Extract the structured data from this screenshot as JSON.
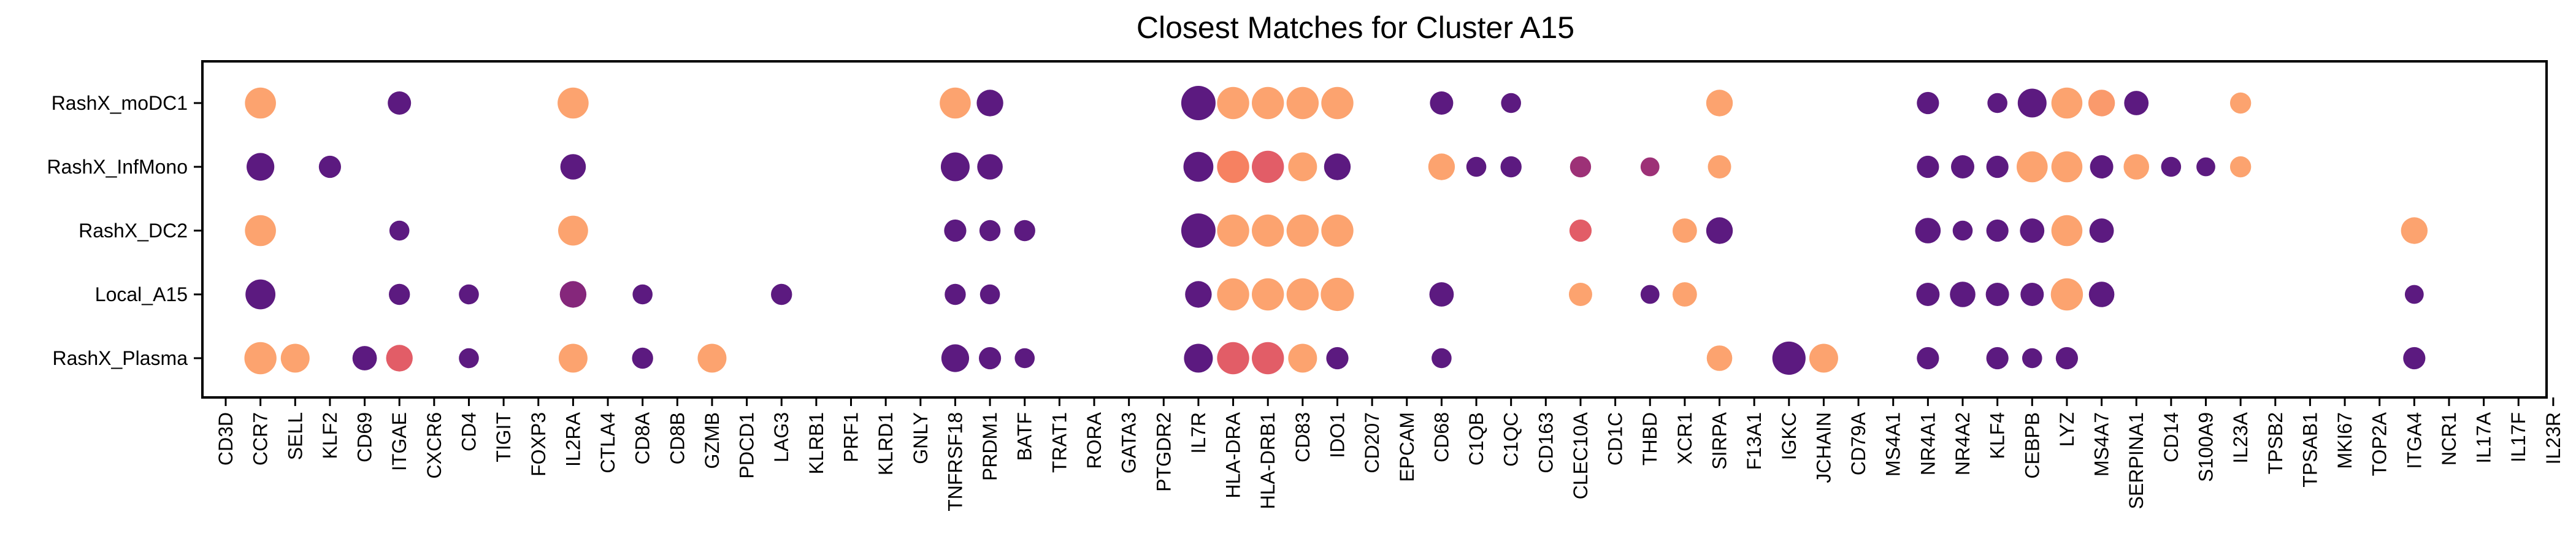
{
  "chart_data": {
    "type": "scatter",
    "subtype": "dot-plot",
    "title": "Closest Matches for Cluster A15",
    "xlabel": "",
    "ylabel": "",
    "grid": false,
    "legend": "none",
    "genes": [
      "CD3D",
      "CCR7",
      "SELL",
      "KLF2",
      "CD69",
      "ITGAE",
      "CXCR6",
      "CD4",
      "TIGIT",
      "FOXP3",
      "IL2RA",
      "CTLA4",
      "CD8A",
      "CD8B",
      "GZMB",
      "PDCD1",
      "LAG3",
      "KLRB1",
      "PRF1",
      "KLRD1",
      "GNLY",
      "TNFRSF18",
      "PRDM1",
      "BATF",
      "TRAT1",
      "RORA",
      "GATA3",
      "PTGDR2",
      "IL7R",
      "HLA-DRA",
      "HLA-DRB1",
      "CD83",
      "IDO1",
      "CD207",
      "EPCAM",
      "CD68",
      "C1QB",
      "C1QC",
      "CD163",
      "CLEC10A",
      "CD1C",
      "THBD",
      "XCR1",
      "SIRPA",
      "F13A1",
      "IGKC",
      "JCHAIN",
      "CD79A",
      "MS4A1",
      "NR4A1",
      "NR4A2",
      "KLF4",
      "CEBPB",
      "LYZ",
      "MS4A7",
      "SERPINA1",
      "CD14",
      "S100A9",
      "IL23A",
      "TPSB2",
      "TPSAB1",
      "MKI67",
      "TOP2A",
      "ITGA4",
      "NCR1",
      "IL17A",
      "IL17F",
      "IL23R"
    ],
    "rows": [
      "RashX_moDC1",
      "RashX_InfMono",
      "RashX_DC2",
      "Local_A15",
      "RashX_Plasma"
    ],
    "size_unit": "relative dot size (0-1)",
    "color_unit": "relative expression (0 = dark purple, 1 = light orange)",
    "palette": [
      "#5c1a80",
      "#8f2a7a",
      "#d64b6d",
      "#f4785e",
      "#fca36f"
    ],
    "points": [
      {
        "row": "RashX_moDC1",
        "gene": "CCR7",
        "size": 0.85,
        "color": 1.0
      },
      {
        "row": "RashX_moDC1",
        "gene": "ITGAE",
        "size": 0.5,
        "color": 0.0
      },
      {
        "row": "RashX_moDC1",
        "gene": "IL2RA",
        "size": 0.85,
        "color": 1.0
      },
      {
        "row": "RashX_moDC1",
        "gene": "TNFRSF18",
        "size": 0.85,
        "color": 1.0
      },
      {
        "row": "RashX_moDC1",
        "gene": "PRDM1",
        "size": 0.65,
        "color": 0.0
      },
      {
        "row": "RashX_moDC1",
        "gene": "IL7R",
        "size": 1.0,
        "color": 0.0
      },
      {
        "row": "RashX_moDC1",
        "gene": "HLA-DRA",
        "size": 0.9,
        "color": 1.0
      },
      {
        "row": "RashX_moDC1",
        "gene": "HLA-DRB1",
        "size": 0.9,
        "color": 1.0
      },
      {
        "row": "RashX_moDC1",
        "gene": "CD83",
        "size": 0.9,
        "color": 1.0
      },
      {
        "row": "RashX_moDC1",
        "gene": "IDO1",
        "size": 0.9,
        "color": 1.0
      },
      {
        "row": "RashX_moDC1",
        "gene": "CD68",
        "size": 0.5,
        "color": 0.0
      },
      {
        "row": "RashX_moDC1",
        "gene": "C1QC",
        "size": 0.35,
        "color": 0.0
      },
      {
        "row": "RashX_moDC1",
        "gene": "SIRPA",
        "size": 0.65,
        "color": 1.0
      },
      {
        "row": "RashX_moDC1",
        "gene": "NR4A1",
        "size": 0.45,
        "color": 0.0
      },
      {
        "row": "RashX_moDC1",
        "gene": "KLF4",
        "size": 0.35,
        "color": 0.0
      },
      {
        "row": "RashX_moDC1",
        "gene": "CEBPB",
        "size": 0.75,
        "color": 0.0
      },
      {
        "row": "RashX_moDC1",
        "gene": "LYZ",
        "size": 0.85,
        "color": 1.0
      },
      {
        "row": "RashX_moDC1",
        "gene": "MS4A7",
        "size": 0.65,
        "color": 0.95
      },
      {
        "row": "RashX_moDC1",
        "gene": "SERPINA1",
        "size": 0.55,
        "color": 0.0
      },
      {
        "row": "RashX_moDC1",
        "gene": "IL23A",
        "size": 0.4,
        "color": 1.0
      },
      {
        "row": "RashX_InfMono",
        "gene": "CCR7",
        "size": 0.7,
        "color": 0.0
      },
      {
        "row": "RashX_InfMono",
        "gene": "KLF2",
        "size": 0.45,
        "color": 0.0
      },
      {
        "row": "RashX_InfMono",
        "gene": "IL2RA",
        "size": 0.6,
        "color": 0.0
      },
      {
        "row": "RashX_InfMono",
        "gene": "TNFRSF18",
        "size": 0.75,
        "color": 0.0
      },
      {
        "row": "RashX_InfMono",
        "gene": "PRDM1",
        "size": 0.6,
        "color": 0.0
      },
      {
        "row": "RashX_InfMono",
        "gene": "IL7R",
        "size": 0.8,
        "color": 0.0
      },
      {
        "row": "RashX_InfMono",
        "gene": "HLA-DRA",
        "size": 0.9,
        "color": 0.8
      },
      {
        "row": "RashX_InfMono",
        "gene": "HLA-DRB1",
        "size": 0.9,
        "color": 0.6
      },
      {
        "row": "RashX_InfMono",
        "gene": "CD83",
        "size": 0.75,
        "color": 1.0
      },
      {
        "row": "RashX_InfMono",
        "gene": "IDO1",
        "size": 0.65,
        "color": 0.0
      },
      {
        "row": "RashX_InfMono",
        "gene": "CD68",
        "size": 0.65,
        "color": 1.0
      },
      {
        "row": "RashX_InfMono",
        "gene": "C1QB",
        "size": 0.35,
        "color": 0.0
      },
      {
        "row": "RashX_InfMono",
        "gene": "C1QC",
        "size": 0.4,
        "color": 0.0
      },
      {
        "row": "RashX_InfMono",
        "gene": "CLEC10A",
        "size": 0.4,
        "color": 0.3
      },
      {
        "row": "RashX_InfMono",
        "gene": "THBD",
        "size": 0.3,
        "color": 0.3
      },
      {
        "row": "RashX_InfMono",
        "gene": "SIRPA",
        "size": 0.5,
        "color": 1.0
      },
      {
        "row": "RashX_InfMono",
        "gene": "NR4A1",
        "size": 0.45,
        "color": 0.0
      },
      {
        "row": "RashX_InfMono",
        "gene": "NR4A2",
        "size": 0.5,
        "color": 0.0
      },
      {
        "row": "RashX_InfMono",
        "gene": "KLF4",
        "size": 0.45,
        "color": 0.0
      },
      {
        "row": "RashX_InfMono",
        "gene": "CEBPB",
        "size": 0.85,
        "color": 1.0
      },
      {
        "row": "RashX_InfMono",
        "gene": "LYZ",
        "size": 0.85,
        "color": 1.0
      },
      {
        "row": "RashX_InfMono",
        "gene": "MS4A7",
        "size": 0.5,
        "color": 0.0
      },
      {
        "row": "RashX_InfMono",
        "gene": "SERPINA1",
        "size": 0.6,
        "color": 1.0
      },
      {
        "row": "RashX_InfMono",
        "gene": "CD14",
        "size": 0.35,
        "color": 0.0
      },
      {
        "row": "RashX_InfMono",
        "gene": "S100A9",
        "size": 0.3,
        "color": 0.0
      },
      {
        "row": "RashX_InfMono",
        "gene": "IL23A",
        "size": 0.4,
        "color": 1.0
      },
      {
        "row": "RashX_DC2",
        "gene": "CCR7",
        "size": 0.85,
        "color": 1.0
      },
      {
        "row": "RashX_DC2",
        "gene": "ITGAE",
        "size": 0.35,
        "color": 0.0
      },
      {
        "row": "RashX_DC2",
        "gene": "IL2RA",
        "size": 0.8,
        "color": 1.0
      },
      {
        "row": "RashX_DC2",
        "gene": "TNFRSF18",
        "size": 0.45,
        "color": 0.0
      },
      {
        "row": "RashX_DC2",
        "gene": "PRDM1",
        "size": 0.4,
        "color": 0.0
      },
      {
        "row": "RashX_DC2",
        "gene": "BATF",
        "size": 0.4,
        "color": 0.0
      },
      {
        "row": "RashX_DC2",
        "gene": "IL7R",
        "size": 1.0,
        "color": 0.0
      },
      {
        "row": "RashX_DC2",
        "gene": "HLA-DRA",
        "size": 0.9,
        "color": 1.0
      },
      {
        "row": "RashX_DC2",
        "gene": "HLA-DRB1",
        "size": 0.9,
        "color": 1.0
      },
      {
        "row": "RashX_DC2",
        "gene": "CD83",
        "size": 0.9,
        "color": 1.0
      },
      {
        "row": "RashX_DC2",
        "gene": "IDO1",
        "size": 0.9,
        "color": 1.0
      },
      {
        "row": "RashX_DC2",
        "gene": "CLEC10A",
        "size": 0.45,
        "color": 0.6
      },
      {
        "row": "RashX_DC2",
        "gene": "XCR1",
        "size": 0.55,
        "color": 1.0
      },
      {
        "row": "RashX_DC2",
        "gene": "SIRPA",
        "size": 0.65,
        "color": 0.0
      },
      {
        "row": "RashX_DC2",
        "gene": "NR4A1",
        "size": 0.6,
        "color": 0.0
      },
      {
        "row": "RashX_DC2",
        "gene": "NR4A2",
        "size": 0.35,
        "color": 0.0
      },
      {
        "row": "RashX_DC2",
        "gene": "KLF4",
        "size": 0.45,
        "color": 0.0
      },
      {
        "row": "RashX_DC2",
        "gene": "CEBPB",
        "size": 0.55,
        "color": 0.0
      },
      {
        "row": "RashX_DC2",
        "gene": "LYZ",
        "size": 0.85,
        "color": 1.0
      },
      {
        "row": "RashX_DC2",
        "gene": "MS4A7",
        "size": 0.55,
        "color": 0.0
      },
      {
        "row": "RashX_DC2",
        "gene": "ITGA4",
        "size": 0.65,
        "color": 1.0
      },
      {
        "row": "Local_A15",
        "gene": "CCR7",
        "size": 0.8,
        "color": 0.0
      },
      {
        "row": "Local_A15",
        "gene": "ITGAE",
        "size": 0.4,
        "color": 0.0
      },
      {
        "row": "Local_A15",
        "gene": "CD4",
        "size": 0.35,
        "color": 0.0
      },
      {
        "row": "Local_A15",
        "gene": "IL2RA",
        "size": 0.65,
        "color": 0.2
      },
      {
        "row": "Local_A15",
        "gene": "CD8A",
        "size": 0.35,
        "color": 0.0
      },
      {
        "row": "Local_A15",
        "gene": "LAG3",
        "size": 0.4,
        "color": 0.0
      },
      {
        "row": "Local_A15",
        "gene": "TNFRSF18",
        "size": 0.4,
        "color": 0.0
      },
      {
        "row": "Local_A15",
        "gene": "PRDM1",
        "size": 0.35,
        "color": 0.0
      },
      {
        "row": "Local_A15",
        "gene": "IL7R",
        "size": 0.65,
        "color": 0.0
      },
      {
        "row": "Local_A15",
        "gene": "HLA-DRA",
        "size": 0.9,
        "color": 1.0
      },
      {
        "row": "Local_A15",
        "gene": "HLA-DRB1",
        "size": 0.9,
        "color": 1.0
      },
      {
        "row": "Local_A15",
        "gene": "CD83",
        "size": 0.9,
        "color": 1.0
      },
      {
        "row": "Local_A15",
        "gene": "IDO1",
        "size": 0.95,
        "color": 1.0
      },
      {
        "row": "Local_A15",
        "gene": "CD68",
        "size": 0.55,
        "color": 0.0
      },
      {
        "row": "Local_A15",
        "gene": "CLEC10A",
        "size": 0.5,
        "color": 1.0
      },
      {
        "row": "Local_A15",
        "gene": "THBD",
        "size": 0.3,
        "color": 0.0
      },
      {
        "row": "Local_A15",
        "gene": "XCR1",
        "size": 0.55,
        "color": 1.0
      },
      {
        "row": "Local_A15",
        "gene": "NR4A1",
        "size": 0.5,
        "color": 0.0
      },
      {
        "row": "Local_A15",
        "gene": "NR4A2",
        "size": 0.6,
        "color": 0.0
      },
      {
        "row": "Local_A15",
        "gene": "KLF4",
        "size": 0.5,
        "color": 0.0
      },
      {
        "row": "Local_A15",
        "gene": "CEBPB",
        "size": 0.5,
        "color": 0.0
      },
      {
        "row": "Local_A15",
        "gene": "LYZ",
        "size": 0.9,
        "color": 1.0
      },
      {
        "row": "Local_A15",
        "gene": "MS4A7",
        "size": 0.6,
        "color": 0.0
      },
      {
        "row": "Local_A15",
        "gene": "ITGA4",
        "size": 0.3,
        "color": 0.0
      },
      {
        "row": "RashX_Plasma",
        "gene": "CCR7",
        "size": 0.9,
        "color": 1.0
      },
      {
        "row": "RashX_Plasma",
        "gene": "SELL",
        "size": 0.75,
        "color": 1.0
      },
      {
        "row": "RashX_Plasma",
        "gene": "CD69",
        "size": 0.55,
        "color": 0.0
      },
      {
        "row": "RashX_Plasma",
        "gene": "ITGAE",
        "size": 0.65,
        "color": 0.6
      },
      {
        "row": "RashX_Plasma",
        "gene": "CD4",
        "size": 0.35,
        "color": 0.0
      },
      {
        "row": "RashX_Plasma",
        "gene": "IL2RA",
        "size": 0.75,
        "color": 1.0
      },
      {
        "row": "RashX_Plasma",
        "gene": "CD8A",
        "size": 0.4,
        "color": 0.0
      },
      {
        "row": "RashX_Plasma",
        "gene": "GZMB",
        "size": 0.75,
        "color": 1.0
      },
      {
        "row": "RashX_Plasma",
        "gene": "TNFRSF18",
        "size": 0.7,
        "color": 0.0
      },
      {
        "row": "RashX_Plasma",
        "gene": "PRDM1",
        "size": 0.45,
        "color": 0.0
      },
      {
        "row": "RashX_Plasma",
        "gene": "BATF",
        "size": 0.35,
        "color": 0.0
      },
      {
        "row": "RashX_Plasma",
        "gene": "IL7R",
        "size": 0.75,
        "color": 0.0
      },
      {
        "row": "RashX_Plasma",
        "gene": "HLA-DRA",
        "size": 0.9,
        "color": 0.6
      },
      {
        "row": "RashX_Plasma",
        "gene": "HLA-DRB1",
        "size": 0.9,
        "color": 0.6
      },
      {
        "row": "RashX_Plasma",
        "gene": "CD83",
        "size": 0.75,
        "color": 1.0
      },
      {
        "row": "RashX_Plasma",
        "gene": "IDO1",
        "size": 0.45,
        "color": 0.0
      },
      {
        "row": "RashX_Plasma",
        "gene": "CD68",
        "size": 0.35,
        "color": 0.0
      },
      {
        "row": "RashX_Plasma",
        "gene": "SIRPA",
        "size": 0.6,
        "color": 1.0
      },
      {
        "row": "RashX_Plasma",
        "gene": "IGKC",
        "size": 0.95,
        "color": 0.0
      },
      {
        "row": "RashX_Plasma",
        "gene": "JCHAIN",
        "size": 0.75,
        "color": 1.0
      },
      {
        "row": "RashX_Plasma",
        "gene": "NR4A1",
        "size": 0.45,
        "color": 0.0
      },
      {
        "row": "RashX_Plasma",
        "gene": "KLF4",
        "size": 0.45,
        "color": 0.0
      },
      {
        "row": "RashX_Plasma",
        "gene": "CEBPB",
        "size": 0.35,
        "color": 0.0
      },
      {
        "row": "RashX_Plasma",
        "gene": "LYZ",
        "size": 0.45,
        "color": 0.0
      },
      {
        "row": "RashX_Plasma",
        "gene": "ITGA4",
        "size": 0.45,
        "color": 0.0
      }
    ]
  }
}
